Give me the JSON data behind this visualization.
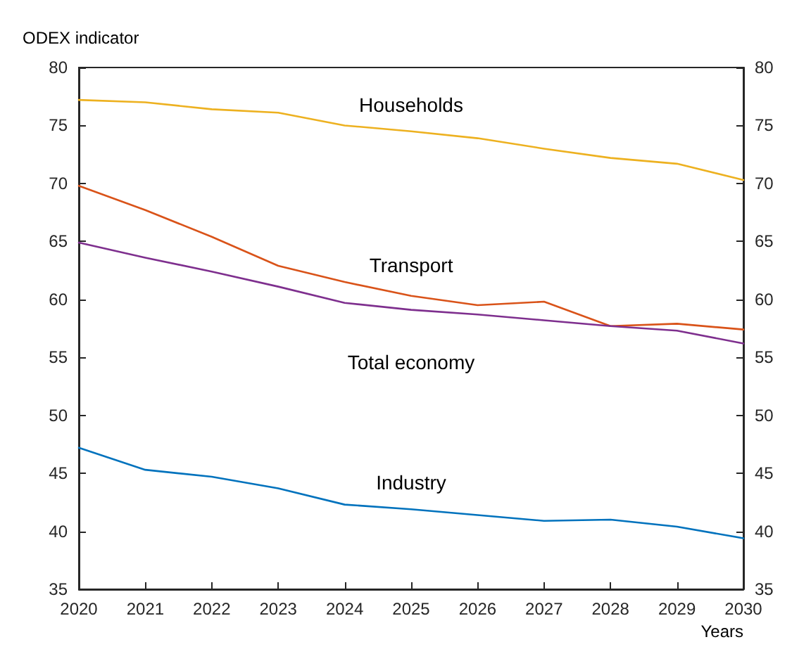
{
  "chart_data": {
    "type": "line",
    "ylabel": "ODEX indicator",
    "xlabel": "Years",
    "x": [
      2020,
      2021,
      2022,
      2023,
      2024,
      2025,
      2026,
      2027,
      2028,
      2029,
      2030
    ],
    "xlim": [
      2020,
      2030
    ],
    "xticks": [
      2020,
      2021,
      2022,
      2023,
      2024,
      2025,
      2026,
      2027,
      2028,
      2029,
      2030
    ],
    "ylim": [
      35,
      80
    ],
    "yticks": [
      35,
      40,
      45,
      50,
      55,
      60,
      65,
      70,
      75,
      80
    ],
    "y2lim": [
      35,
      80
    ],
    "y2ticks": [
      35,
      40,
      45,
      50,
      55,
      60,
      65,
      70,
      75,
      80
    ],
    "grid": false,
    "legend": false,
    "marker": "none",
    "line_style": "solid",
    "series": [
      {
        "name": "Households",
        "color": "#edb120",
        "values": [
          77.2,
          77.0,
          76.4,
          76.1,
          75.0,
          74.5,
          73.9,
          73.0,
          72.2,
          71.7,
          70.3
        ]
      },
      {
        "name": "Transport",
        "color": "#d95319",
        "values": [
          69.8,
          67.7,
          65.4,
          62.9,
          61.5,
          60.3,
          59.5,
          59.8,
          57.7,
          57.9,
          57.4
        ]
      },
      {
        "name": "Total economy",
        "color": "#7e2f8e",
        "values": [
          64.9,
          63.6,
          62.4,
          61.1,
          59.7,
          59.1,
          58.7,
          58.2,
          57.7,
          57.3,
          56.2
        ]
      },
      {
        "name": "Industry",
        "color": "#0072bd",
        "values": [
          47.2,
          45.3,
          44.7,
          43.7,
          42.3,
          41.9,
          41.4,
          40.9,
          41.0,
          40.4,
          39.4
        ]
      }
    ]
  }
}
